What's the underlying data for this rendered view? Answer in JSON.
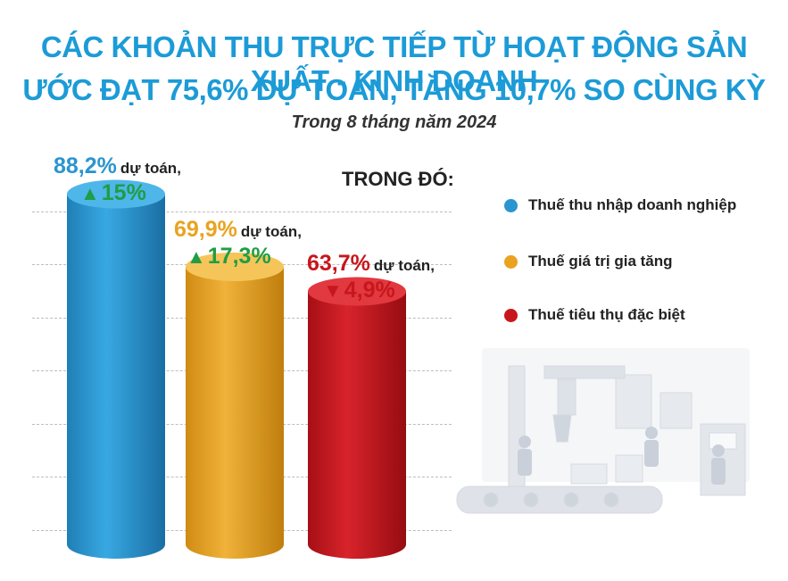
{
  "title": {
    "line1": "CÁC KHOẢN THU TRỰC TIẾP TỪ HOẠT ĐỘNG SẢN XUẤT - KINH DOANH",
    "line2": "ƯỚC ĐẠT 75,6% DỰ TOÁN, TĂNG 10,7% SO CÙNG KỲ"
  },
  "subtitle": "Trong 8 tháng năm 2024",
  "legend": {
    "title": "TRONG ĐÓ:",
    "items": [
      {
        "label": "Thuế thu nhập doanh nghiệp",
        "color": "#2a95cf"
      },
      {
        "label": "Thuế giá trị gia tăng",
        "color": "#e9a321"
      },
      {
        "label": "Thuế tiêu thụ đặc biệt",
        "color": "#c8161d"
      }
    ]
  },
  "chart_data": {
    "type": "bar",
    "categories": [
      "Thuế thu nhập doanh nghiệp",
      "Thuế giá trị gia tăng",
      "Thuế tiêu thụ đặc biệt"
    ],
    "values": [
      88.2,
      69.9,
      63.7
    ],
    "unit": "% dự toán",
    "ylim": [
      0,
      100
    ],
    "grid": true,
    "legend_position": "right",
    "labels": [
      {
        "pct": "88,2%",
        "suffix": "dự toán,",
        "change": "15%",
        "direction": "up",
        "change_color": "#1f9e45",
        "pct_color": "#2a95cf"
      },
      {
        "pct": "69,9%",
        "suffix": "dự toán,",
        "change": "17,3%",
        "direction": "up",
        "change_color": "#1f9e45",
        "pct_color": "#e9a321"
      },
      {
        "pct": "63,7%",
        "suffix": "dự toán,",
        "change": "4,9%",
        "direction": "down",
        "change_color": "#c8161d",
        "pct_color": "#c8161d"
      }
    ],
    "changes": [
      15,
      17.3,
      -4.9
    ],
    "colors": {
      "blue": "#2a95cf",
      "gold": "#e9a321",
      "red": "#c8161d",
      "up_arrow": "#1f9e45",
      "down_arrow": "#c8161d"
    }
  }
}
